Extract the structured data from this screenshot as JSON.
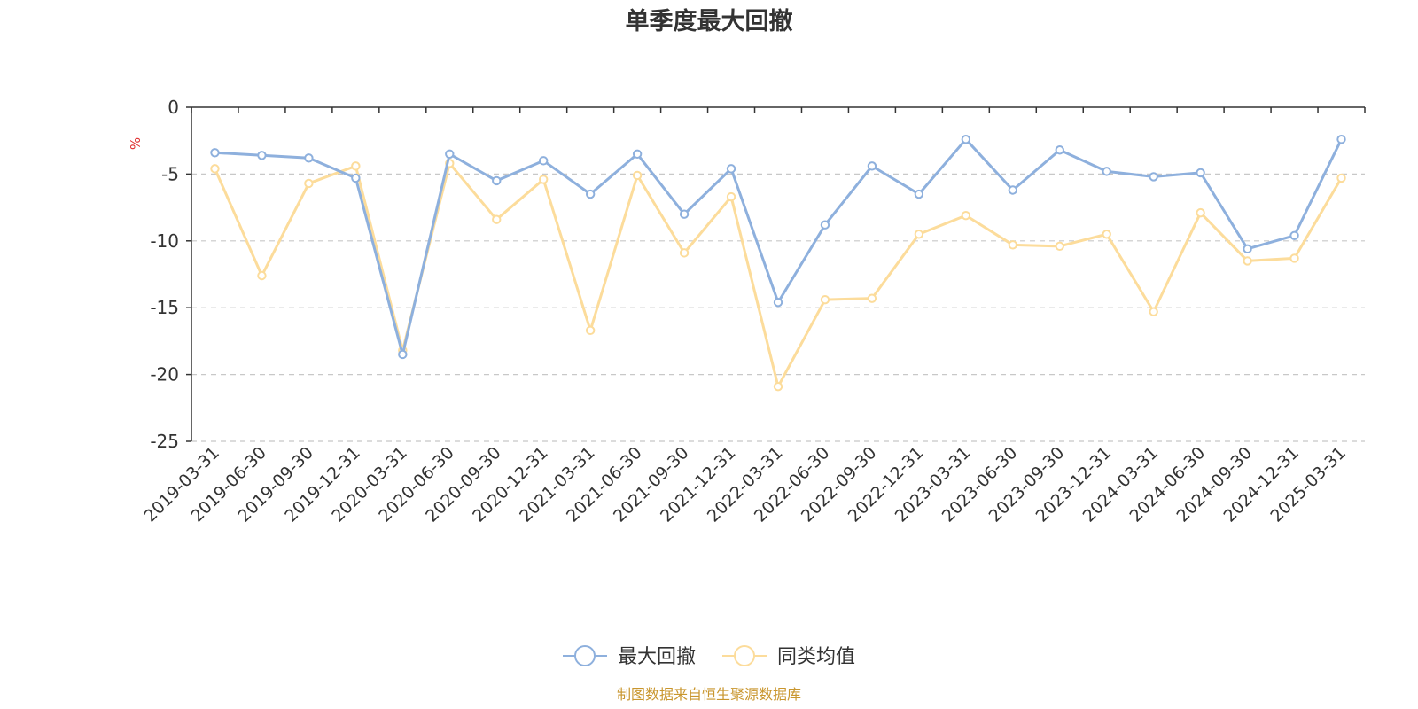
{
  "chart_data": {
    "type": "line",
    "title": "单季度最大回撤",
    "ylabel": "%",
    "ylim": [
      -25,
      0
    ],
    "yticks": [
      0,
      -5,
      -10,
      -15,
      -20,
      -25
    ],
    "grid": true,
    "legend_position": "bottom-center",
    "categories": [
      "2019-03-31",
      "2019-06-30",
      "2019-09-30",
      "2019-12-31",
      "2020-03-31",
      "2020-06-30",
      "2020-09-30",
      "2020-12-31",
      "2021-03-31",
      "2021-06-30",
      "2021-09-30",
      "2021-12-31",
      "2022-03-31",
      "2022-06-30",
      "2022-09-30",
      "2022-12-31",
      "2023-03-31",
      "2023-06-30",
      "2023-09-30",
      "2023-12-31",
      "2024-03-31",
      "2024-06-30",
      "2024-09-30",
      "2024-12-31",
      "2025-03-31"
    ],
    "series": [
      {
        "name": "最大回撤",
        "color": "#8eb0dd",
        "values": [
          -3.4,
          -3.6,
          -3.8,
          -5.3,
          -18.5,
          -3.5,
          -5.5,
          -4.0,
          -6.5,
          -3.5,
          -8.0,
          -4.6,
          -14.6,
          -8.8,
          -4.4,
          -6.5,
          -2.4,
          -6.2,
          -3.2,
          -4.8,
          -5.2,
          -4.9,
          -10.6,
          -9.6,
          -2.4
        ]
      },
      {
        "name": "同类均值",
        "color": "#fcdc9b",
        "values": [
          -4.6,
          -12.6,
          -5.7,
          -4.4,
          -18.2,
          -4.2,
          -8.4,
          -5.4,
          -16.7,
          -5.1,
          -10.9,
          -6.7,
          -20.9,
          -14.4,
          -14.3,
          -9.5,
          -8.1,
          -10.3,
          -10.4,
          -9.5,
          -15.3,
          -7.9,
          -11.5,
          -11.3,
          -5.3
        ]
      }
    ]
  },
  "source": {
    "text": "制图数据来自恒生聚源数据库",
    "color": "#c9962e"
  },
  "colors": {
    "unit": "#e03030",
    "grid": "#c8c8c8",
    "axis": "#333333"
  }
}
